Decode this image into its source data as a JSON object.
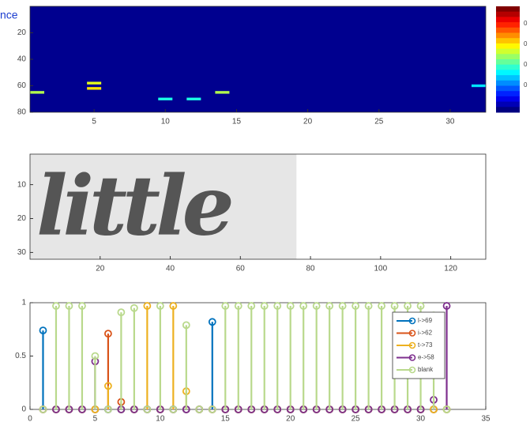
{
  "chart_data": [
    {
      "type": "heatmap",
      "title": "nce",
      "xlim": [
        0.5,
        32.5
      ],
      "ylim": [
        0,
        80
      ],
      "xticks": [
        5,
        10,
        15,
        20,
        25,
        30
      ],
      "yticks": [
        20,
        40,
        60,
        80
      ],
      "cells": [
        [
          1,
          65,
          0.3
        ],
        [
          5,
          58,
          0.35
        ],
        [
          5,
          62,
          0.4
        ],
        [
          10,
          70,
          0.15
        ],
        [
          12,
          70,
          0.15
        ],
        [
          14,
          65,
          0.3
        ],
        [
          32,
          60,
          0.1
        ]
      ],
      "colorbar_labels": [
        "0",
        "0",
        "0",
        "0"
      ]
    },
    {
      "type": "image",
      "image_text": "little",
      "xlim": [
        0,
        130
      ],
      "ylim": [
        1,
        32
      ],
      "xticks": [
        20,
        40,
        60,
        80,
        100,
        120
      ],
      "yticks": [
        10,
        20,
        30
      ],
      "image_extent": [
        0,
        76
      ]
    },
    {
      "type": "stem",
      "xlim": [
        0,
        35
      ],
      "ylim": [
        0,
        1
      ],
      "xticks": [
        0,
        5,
        10,
        15,
        20,
        25,
        30,
        35
      ],
      "yticks": [
        0,
        0.5,
        1
      ],
      "x": [
        1,
        2,
        3,
        4,
        5,
        6,
        7,
        8,
        9,
        10,
        11,
        12,
        13,
        14,
        15,
        16,
        17,
        18,
        19,
        20,
        21,
        22,
        23,
        24,
        25,
        26,
        27,
        28,
        29,
        30,
        31,
        32
      ],
      "legend": "upper right",
      "series": [
        {
          "name": "l->69",
          "color": "#0072bd",
          "values": [
            0.74,
            0,
            0,
            0,
            0,
            0,
            0,
            0,
            0,
            0,
            0,
            0,
            0,
            0.82,
            0,
            0,
            0,
            0,
            0,
            0,
            0,
            0,
            0,
            0,
            0,
            0,
            0,
            0,
            0,
            0,
            0,
            0
          ]
        },
        {
          "name": "i->62",
          "color": "#d95319",
          "values": [
            0,
            0,
            0,
            0,
            0,
            0.71,
            0.07,
            0,
            0,
            0,
            0,
            0,
            0,
            0,
            0,
            0,
            0,
            0,
            0,
            0,
            0,
            0,
            0,
            0,
            0,
            0,
            0,
            0,
            0,
            0,
            0,
            0
          ]
        },
        {
          "name": "t->73",
          "color": "#edb120",
          "values": [
            0,
            0,
            0,
            0,
            0,
            0.22,
            0,
            0,
            0.97,
            0,
            0.97,
            0.17,
            0,
            0,
            0,
            0,
            0,
            0,
            0,
            0,
            0,
            0,
            0,
            0,
            0,
            0,
            0,
            0,
            0,
            0,
            0,
            0
          ]
        },
        {
          "name": "e->58",
          "color": "#7e2f8e",
          "values": [
            0,
            0,
            0,
            0,
            0.45,
            0,
            0,
            0,
            0,
            0,
            0,
            0,
            0,
            0,
            0,
            0,
            0,
            0,
            0,
            0,
            0,
            0,
            0,
            0,
            0,
            0,
            0,
            0,
            0,
            0,
            0.09,
            0.97
          ]
        },
        {
          "name": "blank",
          "color": "#b9d98c",
          "values": [
            0,
            0.97,
            0.97,
            0.97,
            0.5,
            0,
            0.91,
            0.95,
            0,
            0.97,
            0,
            0.79,
            0,
            0,
            0.97,
            0.97,
            0.97,
            0.97,
            0.97,
            0.97,
            0.97,
            0.97,
            0.97,
            0.97,
            0.97,
            0.97,
            0.97,
            0.97,
            0.97,
            0.97,
            0.88,
            0
          ]
        }
      ]
    }
  ]
}
